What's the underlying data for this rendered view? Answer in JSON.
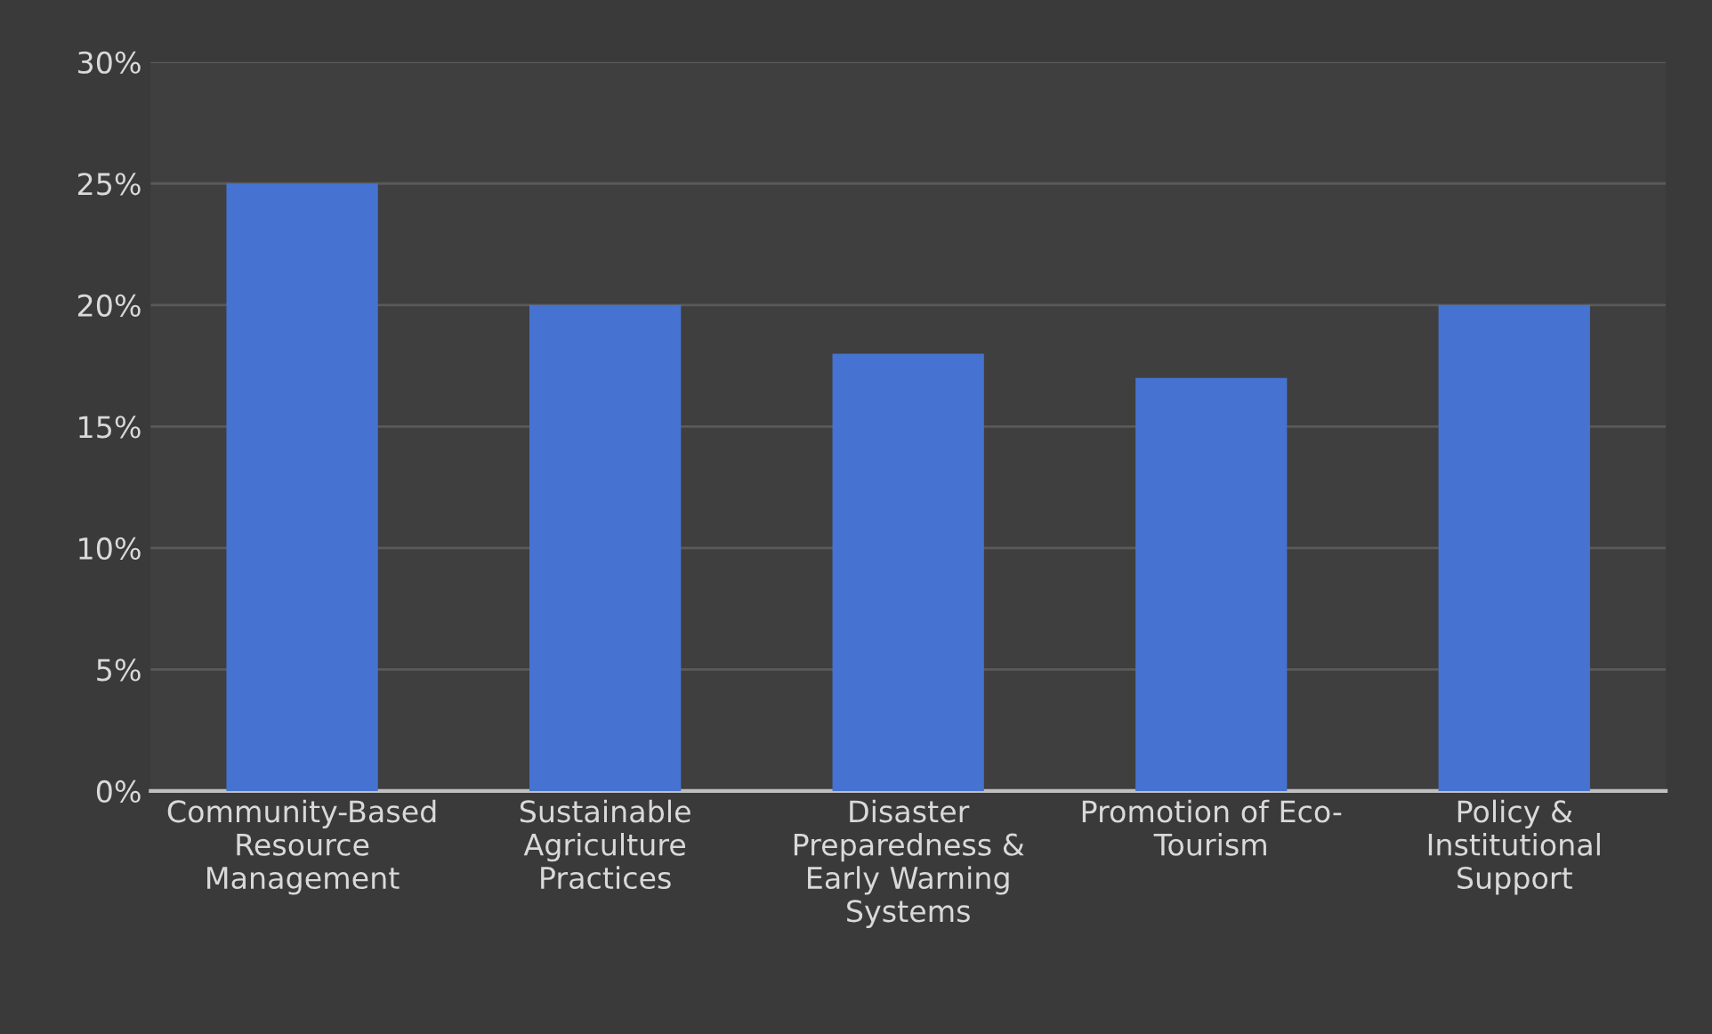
{
  "chart_data": {
    "type": "bar",
    "categories": [
      "Community-Based\nResource\nManagement",
      "Sustainable\nAgriculture\nPractices",
      "Disaster\nPreparedness &\nEarly Warning\nSystems",
      "Promotion of Eco-\nTourism",
      "Policy &\nInstitutional\nSupport"
    ],
    "values": [
      25,
      20,
      18,
      17,
      20
    ],
    "color": "#4673d1",
    "ylim": [
      0,
      30
    ],
    "yticks": [
      {
        "value": 0,
        "label": "0%"
      },
      {
        "value": 5,
        "label": "5%"
      },
      {
        "value": 10,
        "label": "10%"
      },
      {
        "value": 15,
        "label": "15%"
      },
      {
        "value": 20,
        "label": "20%"
      },
      {
        "value": 25,
        "label": "25%"
      },
      {
        "value": 30,
        "label": "30%"
      }
    ],
    "grid": "y"
  }
}
